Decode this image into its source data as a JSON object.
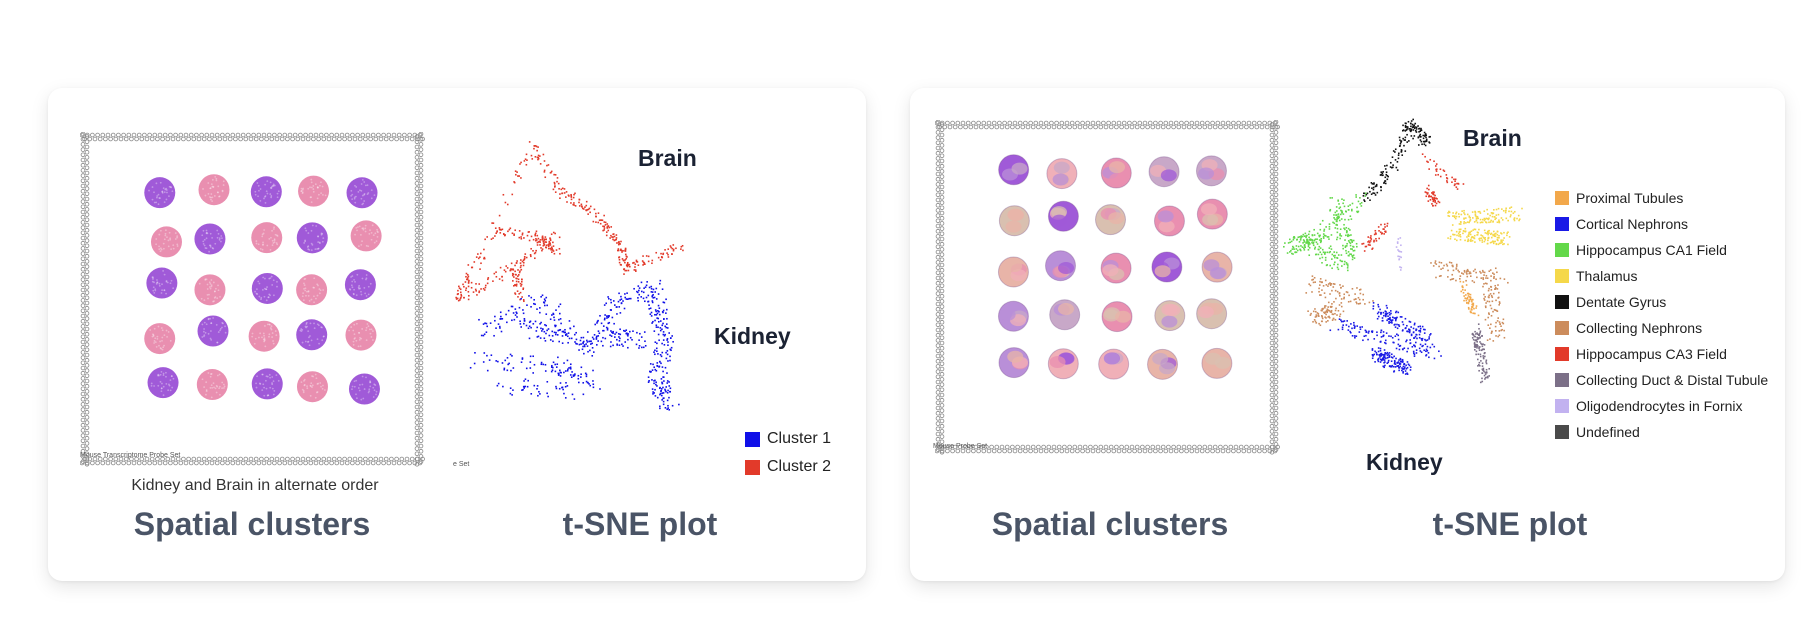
{
  "left_panel": {
    "spatial_caption": "Spatial clusters",
    "spatial_subcaption": "Kidney and Brain in alternate order",
    "tsne_caption": "t-SNE plot",
    "tsne_labels": {
      "brain": "Brain",
      "kidney": "Kidney"
    },
    "legend": [
      {
        "label": "Cluster 1",
        "color": "#1010e8"
      },
      {
        "label": "Cluster 2",
        "color": "#e23a2a"
      }
    ],
    "spot_colors": {
      "kidney": "#e98fb0",
      "brain": "#a05ad8"
    }
  },
  "right_panel": {
    "spatial_caption": "Spatial clusters",
    "tsne_caption": "t-SNE plot",
    "tsne_labels": {
      "brain": "Brain",
      "kidney": "Kidney"
    },
    "legend": [
      {
        "label": "Proximal Tubules",
        "color": "#f2a84b"
      },
      {
        "label": "Cortical Nephrons",
        "color": "#1a1ae6"
      },
      {
        "label": "Hippocampus CA1 Field",
        "color": "#63d84a"
      },
      {
        "label": "Thalamus",
        "color": "#f5d84a"
      },
      {
        "label": "Dentate Gyrus",
        "color": "#111111"
      },
      {
        "label": "Collecting Nephrons",
        "color": "#cc8c5c"
      },
      {
        "label": "Hippocampus CA3 Field",
        "color": "#e23a2a"
      },
      {
        "label": "Collecting Duct & Distal Tubule",
        "color": "#7c7088"
      },
      {
        "label": "Oligodendrocytes in Fornix",
        "color": "#c2b2f0"
      },
      {
        "label": "Undefined",
        "color": "#4a4a4a"
      }
    ]
  }
}
